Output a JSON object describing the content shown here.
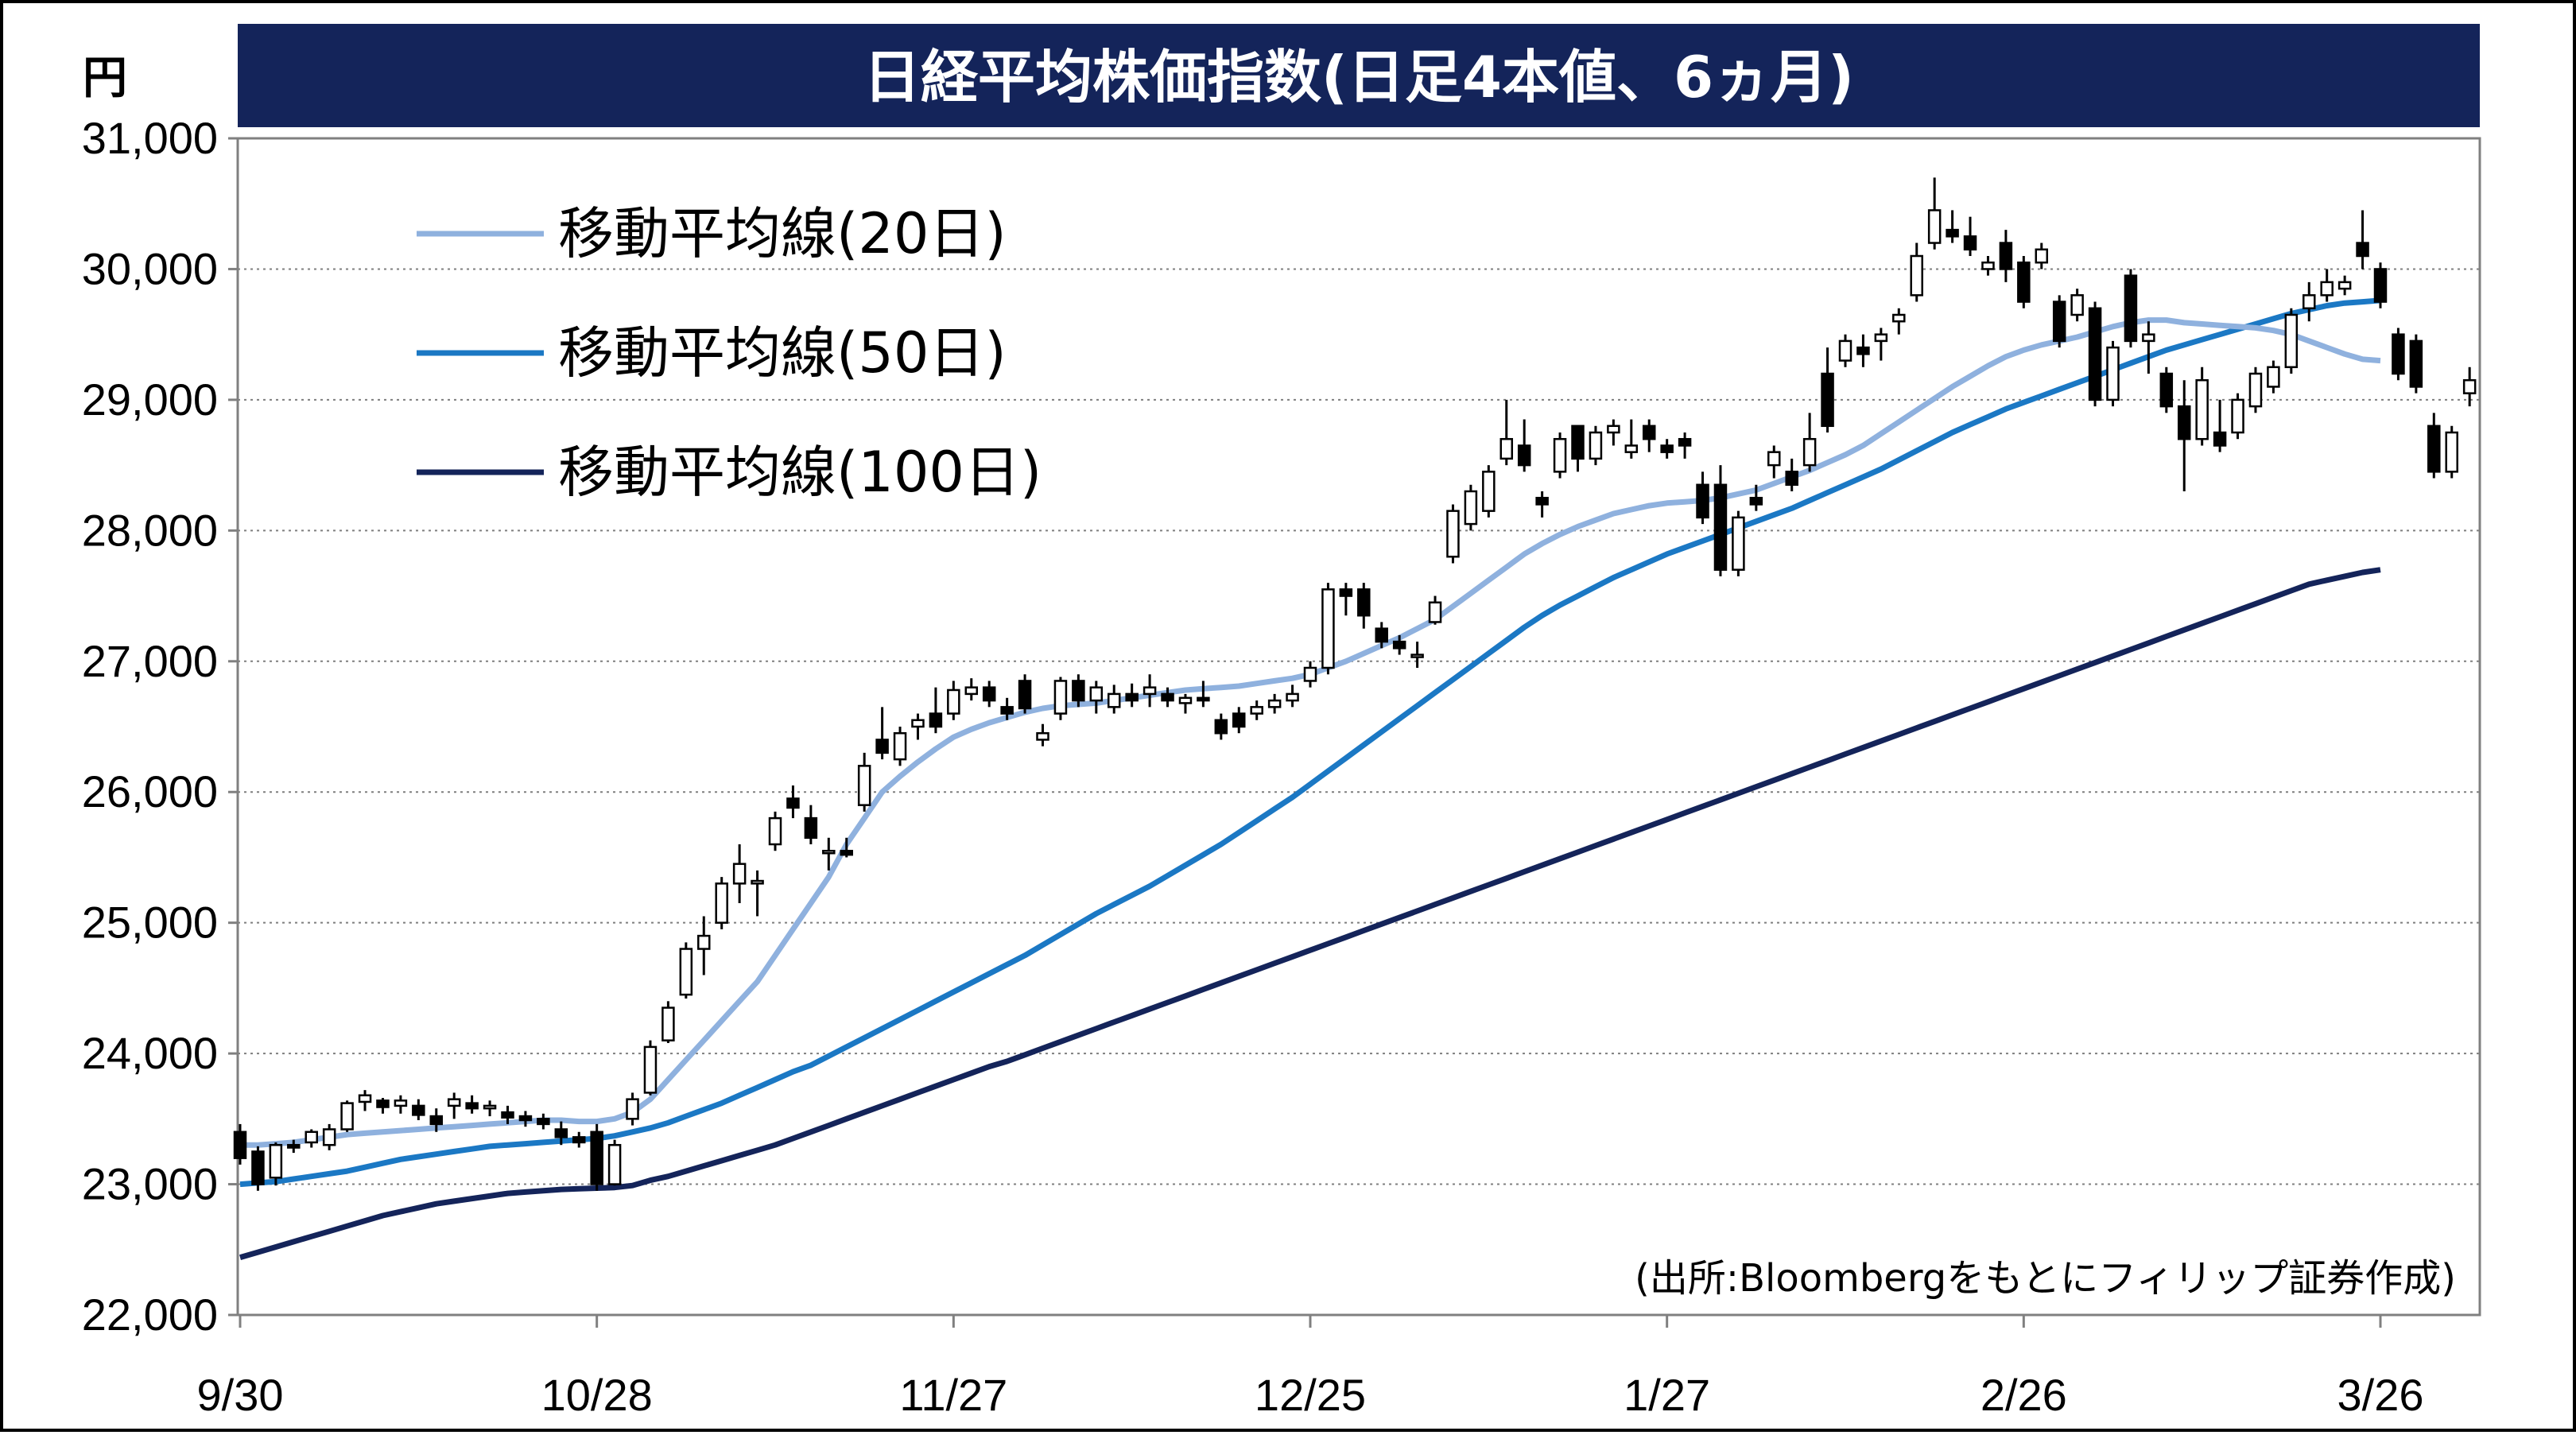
{
  "chart_data": {
    "type": "candlestick",
    "title": "日経平均株価指数(日足4本値、6ヵ月)",
    "unit": "円",
    "source_note": "(出所:Bloombergをもとにフィリップ証券作成)",
    "y_ticks": [
      "22,000",
      "23,000",
      "24,000",
      "25,000",
      "26,000",
      "27,000",
      "28,000",
      "29,000",
      "30,000",
      "31,000"
    ],
    "y_tick_values": [
      22000,
      23000,
      24000,
      25000,
      26000,
      27000,
      28000,
      29000,
      30000,
      31000
    ],
    "ylim": [
      22000,
      31000
    ],
    "x_ticks": [
      "9/30",
      "10/28",
      "11/27",
      "12/25",
      "1/27",
      "2/26",
      "3/26"
    ],
    "x_tick_index": [
      0,
      20,
      40,
      60,
      80,
      100,
      120
    ],
    "n_sessions": 121,
    "grid": "horizontal dotted",
    "legend": [
      {
        "label": "移動平均線(20日)",
        "color": "#8FB1DE"
      },
      {
        "label": "移動平均線(50日)",
        "color": "#1B78C4"
      },
      {
        "label": "移動平均線(100日)",
        "color": "#14245A"
      }
    ],
    "colors": {
      "title_bg": "#14245A",
      "up_fill": "#ffffff",
      "down_fill": "#000000",
      "candle_stroke": "#000000"
    },
    "candles_ohlc": [
      [
        23400,
        23460,
        23150,
        23200
      ],
      [
        23250,
        23290,
        22950,
        23000
      ],
      [
        23050,
        23320,
        22990,
        23300
      ],
      [
        23300,
        23340,
        23240,
        23280
      ],
      [
        23320,
        23420,
        23280,
        23400
      ],
      [
        23300,
        23460,
        23260,
        23420
      ],
      [
        23420,
        23640,
        23400,
        23620
      ],
      [
        23630,
        23720,
        23560,
        23680
      ],
      [
        23640,
        23660,
        23540,
        23590
      ],
      [
        23600,
        23680,
        23540,
        23640
      ],
      [
        23600,
        23650,
        23490,
        23530
      ],
      [
        23520,
        23580,
        23400,
        23460
      ],
      [
        23600,
        23700,
        23500,
        23650
      ],
      [
        23620,
        23680,
        23540,
        23580
      ],
      [
        23580,
        23640,
        23520,
        23600
      ],
      [
        23550,
        23600,
        23460,
        23510
      ],
      [
        23520,
        23560,
        23440,
        23490
      ],
      [
        23500,
        23540,
        23420,
        23460
      ],
      [
        23420,
        23480,
        23300,
        23360
      ],
      [
        23360,
        23400,
        23280,
        23320
      ],
      [
        23400,
        23460,
        22950,
        23000
      ],
      [
        23000,
        23340,
        22990,
        23300
      ],
      [
        23500,
        23700,
        23450,
        23650
      ],
      [
        23700,
        24100,
        23680,
        24050
      ],
      [
        24100,
        24400,
        24080,
        24350
      ],
      [
        24450,
        24850,
        24420,
        24800
      ],
      [
        24800,
        25050,
        24600,
        24900
      ],
      [
        25000,
        25350,
        24950,
        25300
      ],
      [
        25300,
        25600,
        25150,
        25450
      ],
      [
        25300,
        25400,
        25050,
        25320
      ],
      [
        25600,
        25850,
        25550,
        25800
      ],
      [
        25950,
        26050,
        25800,
        25880
      ],
      [
        25800,
        25900,
        25600,
        25650
      ],
      [
        25550,
        25650,
        25400,
        25550
      ],
      [
        25550,
        25650,
        25500,
        25520
      ],
      [
        25900,
        26300,
        25850,
        26200
      ],
      [
        26400,
        26650,
        26250,
        26300
      ],
      [
        26250,
        26500,
        26200,
        26450
      ],
      [
        26500,
        26600,
        26400,
        26550
      ],
      [
        26600,
        26800,
        26450,
        26500
      ],
      [
        26600,
        26850,
        26550,
        26780
      ],
      [
        26750,
        26870,
        26700,
        26800
      ],
      [
        26800,
        26850,
        26650,
        26700
      ],
      [
        26650,
        26720,
        26550,
        26600
      ],
      [
        26850,
        26900,
        26600,
        26640
      ],
      [
        26400,
        26520,
        26350,
        26450
      ],
      [
        26600,
        26880,
        26550,
        26850
      ],
      [
        26850,
        26900,
        26650,
        26700
      ],
      [
        26700,
        26850,
        26600,
        26800
      ],
      [
        26650,
        26820,
        26600,
        26750
      ],
      [
        26750,
        26830,
        26650,
        26700
      ],
      [
        26750,
        26900,
        26650,
        26800
      ],
      [
        26750,
        26800,
        26650,
        26700
      ],
      [
        26680,
        26750,
        26600,
        26720
      ],
      [
        26720,
        26850,
        26650,
        26700
      ],
      [
        26550,
        26600,
        26400,
        26450
      ],
      [
        26600,
        26650,
        26450,
        26500
      ],
      [
        26600,
        26700,
        26550,
        26650
      ],
      [
        26650,
        26750,
        26600,
        26700
      ],
      [
        26700,
        26820,
        26650,
        26750
      ],
      [
        26850,
        27000,
        26800,
        26950
      ],
      [
        26950,
        27600,
        26900,
        27550
      ],
      [
        27550,
        27600,
        27350,
        27500
      ],
      [
        27550,
        27600,
        27250,
        27350
      ],
      [
        27250,
        27300,
        27100,
        27150
      ],
      [
        27150,
        27200,
        27050,
        27100
      ],
      [
        27050,
        27150,
        26950,
        27050
      ],
      [
        27300,
        27500,
        27280,
        27450
      ],
      [
        27800,
        28200,
        27750,
        28150
      ],
      [
        28050,
        28350,
        28000,
        28300
      ],
      [
        28150,
        28500,
        28100,
        28450
      ],
      [
        28550,
        29000,
        28500,
        28700
      ],
      [
        28650,
        28850,
        28450,
        28500
      ],
      [
        28250,
        28300,
        28100,
        28200
      ],
      [
        28450,
        28750,
        28400,
        28700
      ],
      [
        28800,
        28800,
        28450,
        28550
      ],
      [
        28550,
        28800,
        28500,
        28750
      ],
      [
        28750,
        28850,
        28650,
        28800
      ],
      [
        28600,
        28850,
        28550,
        28650
      ],
      [
        28800,
        28850,
        28600,
        28700
      ],
      [
        28650,
        28700,
        28550,
        28600
      ],
      [
        28700,
        28750,
        28550,
        28650
      ],
      [
        28350,
        28450,
        28050,
        28100
      ],
      [
        28350,
        28500,
        27650,
        27700
      ],
      [
        27700,
        28150,
        27650,
        28100
      ],
      [
        28250,
        28350,
        28150,
        28200
      ],
      [
        28500,
        28650,
        28400,
        28600
      ],
      [
        28450,
        28550,
        28300,
        28350
      ],
      [
        28500,
        28900,
        28450,
        28700
      ],
      [
        29200,
        29400,
        28750,
        28800
      ],
      [
        29300,
        29500,
        29250,
        29450
      ],
      [
        29400,
        29500,
        29250,
        29350
      ],
      [
        29450,
        29550,
        29300,
        29500
      ],
      [
        29600,
        29700,
        29500,
        29650
      ],
      [
        29800,
        30200,
        29750,
        30100
      ],
      [
        30200,
        30700,
        30150,
        30450
      ],
      [
        30300,
        30450,
        30200,
        30250
      ],
      [
        30250,
        30400,
        30100,
        30150
      ],
      [
        30000,
        30100,
        29950,
        30050
      ],
      [
        30200,
        30300,
        29900,
        30000
      ],
      [
        30050,
        30100,
        29700,
        29750
      ],
      [
        30050,
        30200,
        30000,
        30150
      ],
      [
        29750,
        29800,
        29400,
        29450
      ],
      [
        29650,
        29850,
        29600,
        29800
      ],
      [
        29700,
        29750,
        28950,
        29000
      ],
      [
        29000,
        29450,
        28950,
        29400
      ],
      [
        29950,
        30000,
        29400,
        29450
      ],
      [
        29450,
        29600,
        29200,
        29500
      ],
      [
        29200,
        29250,
        28900,
        28950
      ],
      [
        28950,
        29150,
        28300,
        28700
      ],
      [
        28700,
        29250,
        28650,
        29150
      ],
      [
        28750,
        29000,
        28600,
        28650
      ],
      [
        28750,
        29050,
        28700,
        29000
      ],
      [
        28950,
        29250,
        28900,
        29200
      ],
      [
        29100,
        29300,
        29050,
        29250
      ],
      [
        29250,
        29700,
        29200,
        29650
      ],
      [
        29700,
        29900,
        29600,
        29800
      ],
      [
        29800,
        30000,
        29750,
        29900
      ],
      [
        29850,
        29950,
        29800,
        29900
      ],
      [
        30200,
        30450,
        30000,
        30100
      ],
      [
        30000,
        30050,
        29700,
        29750
      ],
      [
        29500,
        29550,
        29150,
        29200
      ],
      [
        29450,
        29500,
        29050,
        29100
      ],
      [
        28800,
        28900,
        28400,
        28450
      ],
      [
        28450,
        28800,
        28400,
        28750
      ],
      [
        29050,
        29250,
        28950,
        29150
      ]
    ],
    "series": [
      {
        "name": "移動平均線(20日)",
        "values": [
          23300,
          23300,
          23310,
          23320,
          23340,
          23360,
          23380,
          23390,
          23400,
          23410,
          23420,
          23430,
          23440,
          23450,
          23460,
          23470,
          23480,
          23490,
          23490,
          23480,
          23480,
          23500,
          23550,
          23650,
          23800,
          23950,
          24100,
          24250,
          24400,
          24550,
          24750,
          24950,
          25150,
          25350,
          25600,
          25800,
          26000,
          26120,
          26230,
          26330,
          26420,
          26480,
          26530,
          26570,
          26610,
          26640,
          26660,
          26670,
          26680,
          26700,
          26720,
          26740,
          26760,
          26780,
          26790,
          26800,
          26810,
          26830,
          26850,
          26870,
          26900,
          26950,
          27000,
          27060,
          27120,
          27180,
          27250,
          27320,
          27420,
          27520,
          27620,
          27720,
          27820,
          27900,
          27970,
          28030,
          28080,
          28130,
          28160,
          28190,
          28210,
          28220,
          28230,
          28250,
          28280,
          28310,
          28360,
          28410,
          28460,
          28520,
          28580,
          28650,
          28740,
          28830,
          28920,
          29010,
          29100,
          29180,
          29260,
          29330,
          29380,
          29420,
          29450,
          29480,
          29520,
          29560,
          29590,
          29610,
          29610,
          29590,
          29580,
          29570,
          29560,
          29550,
          29530,
          29500,
          29450,
          29400,
          29350,
          29310,
          29300
        ]
      },
      {
        "name": "移動平均線(50日)",
        "values": [
          23000,
          23010,
          23020,
          23040,
          23060,
          23080,
          23100,
          23130,
          23160,
          23190,
          23210,
          23230,
          23250,
          23270,
          23290,
          23300,
          23310,
          23320,
          23330,
          23340,
          23350,
          23370,
          23400,
          23430,
          23470,
          23520,
          23570,
          23620,
          23680,
          23740,
          23800,
          23860,
          23910,
          23980,
          24050,
          24120,
          24190,
          24260,
          24330,
          24400,
          24470,
          24540,
          24610,
          24680,
          24750,
          24830,
          24910,
          24990,
          25070,
          25140,
          25210,
          25280,
          25360,
          25440,
          25520,
          25600,
          25690,
          25780,
          25870,
          25960,
          26060,
          26160,
          26260,
          26360,
          26460,
          26560,
          26660,
          26760,
          26860,
          26960,
          27060,
          27160,
          27260,
          27350,
          27430,
          27500,
          27570,
          27640,
          27700,
          27760,
          27820,
          27870,
          27920,
          27970,
          28020,
          28070,
          28120,
          28170,
          28230,
          28290,
          28350,
          28410,
          28470,
          28540,
          28610,
          28680,
          28750,
          28810,
          28870,
          28930,
          28980,
          29030,
          29080,
          29130,
          29180,
          29230,
          29280,
          29330,
          29380,
          29420,
          29460,
          29500,
          29540,
          29580,
          29620,
          29660,
          29690,
          29720,
          29740,
          29750,
          29760
        ]
      },
      {
        "name": "移動平均線(100日)",
        "values": [
          22440,
          22480,
          22520,
          22560,
          22600,
          22640,
          22680,
          22720,
          22760,
          22790,
          22820,
          22850,
          22870,
          22890,
          22910,
          22930,
          22940,
          22950,
          22960,
          22965,
          22970,
          22975,
          22990,
          23030,
          23060,
          23100,
          23140,
          23180,
          23220,
          23260,
          23300,
          23350,
          23400,
          23450,
          23500,
          23550,
          23600,
          23650,
          23700,
          23750,
          23800,
          23850,
          23900,
          23940,
          23990,
          24040,
          24090,
          24140,
          24190,
          24240,
          24290,
          24340,
          24390,
          24440,
          24490,
          24540,
          24590,
          24640,
          24690,
          24740,
          24790,
          24840,
          24890,
          24940,
          24990,
          25040,
          25090,
          25140,
          25190,
          25240,
          25290,
          25340,
          25390,
          25440,
          25490,
          25540,
          25590,
          25640,
          25690,
          25740,
          25790,
          25840,
          25890,
          25940,
          25990,
          26040,
          26090,
          26140,
          26190,
          26240,
          26290,
          26340,
          26390,
          26440,
          26490,
          26540,
          26590,
          26640,
          26690,
          26740,
          26790,
          26840,
          26890,
          26940,
          26990,
          27040,
          27090,
          27140,
          27190,
          27240,
          27290,
          27340,
          27390,
          27440,
          27490,
          27540,
          27590,
          27620,
          27650,
          27680,
          27700
        ]
      }
    ]
  }
}
